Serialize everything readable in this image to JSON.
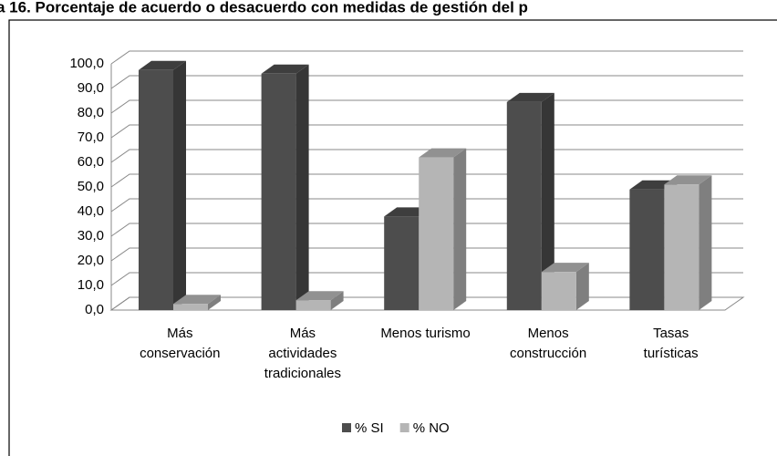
{
  "chart_data": {
    "type": "bar3d",
    "title": "a 16. Porcentaje de acuerdo o desacuerdo con medidas de gestión del p",
    "categories": [
      "Más conservación",
      "Más actividades tradicionales",
      "Menos turismo",
      "Menos construcción",
      "Tasas turísticas"
    ],
    "series": [
      {
        "name": "% SI",
        "color": "#4d4d4d",
        "values": [
          97.5,
          96,
          38,
          84.5,
          49
        ]
      },
      {
        "name": "% NO",
        "color": "#b5b5b5",
        "values": [
          2.5,
          4,
          62,
          15.5,
          51
        ]
      }
    ],
    "ylim": [
      0,
      100
    ],
    "yticks": [
      {
        "value": 0,
        "label": "0,0"
      },
      {
        "value": 10,
        "label": "10,0"
      },
      {
        "value": 20,
        "label": "20,0"
      },
      {
        "value": 30,
        "label": "30,0"
      },
      {
        "value": 40,
        "label": "40,0"
      },
      {
        "value": 50,
        "label": "50,0"
      },
      {
        "value": 60,
        "label": "60,0"
      },
      {
        "value": 70,
        "label": "70,0"
      },
      {
        "value": 80,
        "label": "80,0"
      },
      {
        "value": 90,
        "label": "90,0"
      },
      {
        "value": 100,
        "label": "100,0"
      }
    ],
    "grid": true,
    "legend": "bottom"
  }
}
